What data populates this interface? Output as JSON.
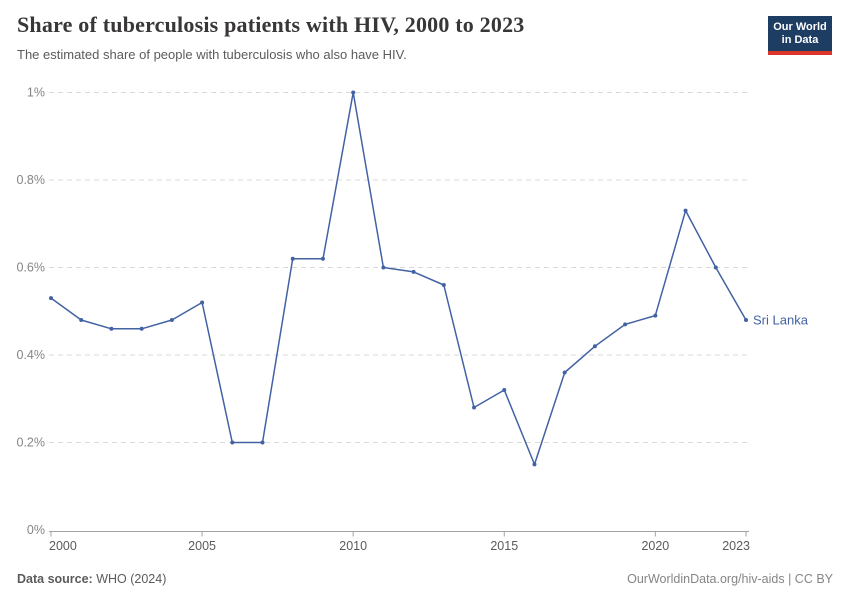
{
  "header": {
    "title": "Share of tuberculosis patients with HIV, 2000 to 2023",
    "subtitle": "The estimated share of people with tuberculosis who also have HIV.",
    "logo_line1": "Our World",
    "logo_line2": "in Data"
  },
  "chart_data": {
    "type": "line",
    "title": "Share of tuberculosis patients with HIV, 2000 to 2023",
    "xlabel": "",
    "ylabel": "",
    "x": [
      2000,
      2001,
      2002,
      2003,
      2004,
      2005,
      2006,
      2007,
      2008,
      2009,
      2010,
      2011,
      2012,
      2013,
      2014,
      2015,
      2016,
      2017,
      2018,
      2019,
      2020,
      2021,
      2022,
      2023
    ],
    "series": [
      {
        "name": "Sri Lanka",
        "values": [
          0.53,
          0.48,
          0.46,
          0.46,
          0.48,
          0.52,
          0.2,
          0.2,
          0.62,
          0.62,
          1.0,
          0.6,
          0.59,
          0.56,
          0.28,
          0.32,
          0.15,
          0.36,
          0.42,
          0.47,
          0.49,
          0.73,
          0.6,
          0.48
        ]
      }
    ],
    "ylim": [
      0,
      1
    ],
    "yticks": [
      0,
      0.2,
      0.4,
      0.6,
      0.8,
      1
    ],
    "ytick_labels": [
      "0%",
      "0.2%",
      "0.4%",
      "0.6%",
      "0.8%",
      "1%"
    ],
    "xticks": [
      2000,
      2005,
      2010,
      2015,
      2020,
      2023
    ],
    "xtick_labels": [
      "2000",
      "2005",
      "2010",
      "2015",
      "2020",
      "2023"
    ],
    "grid": "horizontal-dashed",
    "legend_position": "end-of-line-label",
    "end_label": "Sri Lanka",
    "line_color": "#4262a3"
  },
  "footer": {
    "datasource_label": "Data source:",
    "datasource_value": " WHO (2024)",
    "credit": "OurWorldinData.org/hiv-aids | CC BY"
  },
  "colors": {
    "line": "#4262a3",
    "grid": "#d9d9d9",
    "axis": "#a3a3a3",
    "ytick_text": "#858585",
    "xtick_text": "#5b5b5b",
    "logo_bg": "#1d3d63",
    "logo_bar": "#dc352c",
    "title_text": "#383636",
    "subtitle_text": "#5b5b5b"
  }
}
